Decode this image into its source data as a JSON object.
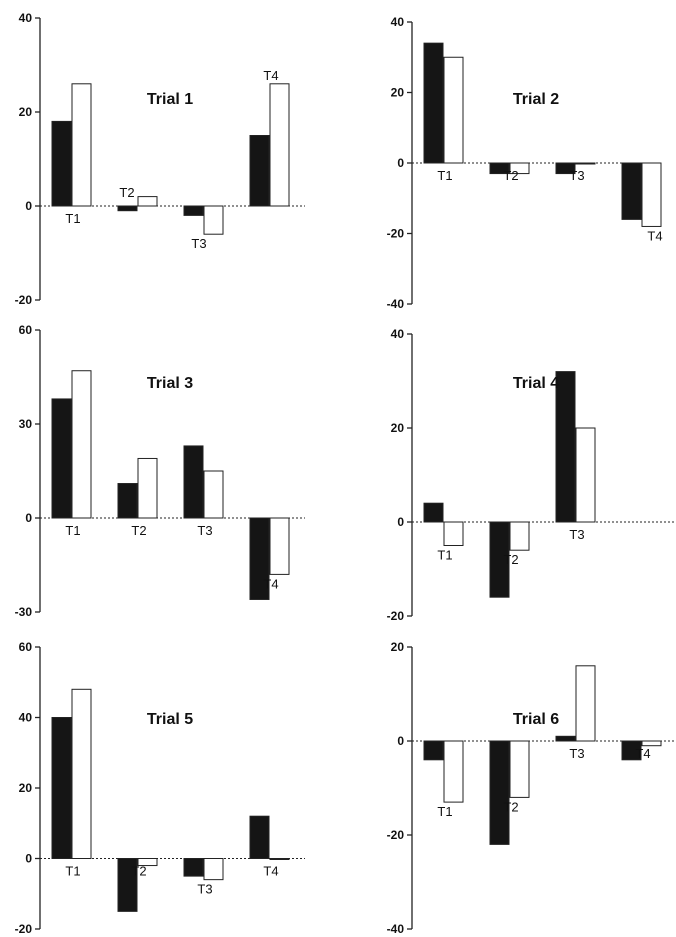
{
  "figure": {
    "colors": {
      "dark_bar": "#151515",
      "light_bar": "#ffffff",
      "axis": "#222222"
    }
  },
  "chart_data": [
    {
      "type": "bar",
      "title": "Trial 1",
      "categories": [
        "T1",
        "T2",
        "T3",
        "T4"
      ],
      "series": [
        {
          "values": [
            18,
            -1,
            -2,
            15
          ]
        },
        {
          "values": [
            26,
            2,
            -6,
            26
          ]
        }
      ],
      "ylim": [
        -20,
        40
      ],
      "yticks": [
        -20,
        0,
        20,
        40
      ]
    },
    {
      "type": "bar",
      "title": "Trial 2",
      "categories": [
        "T1",
        "T2",
        "T3",
        "T4"
      ],
      "series": [
        {
          "values": [
            34,
            -3,
            -3,
            -16
          ]
        },
        {
          "values": [
            30,
            -3,
            0,
            -18
          ]
        }
      ],
      "ylim": [
        -40,
        40
      ],
      "yticks": [
        -40,
        -20,
        0,
        20,
        40
      ]
    },
    {
      "type": "bar",
      "title": "Trial 3",
      "categories": [
        "T1",
        "T2",
        "T3",
        "T4"
      ],
      "series": [
        {
          "values": [
            38,
            11,
            23,
            -26
          ]
        },
        {
          "values": [
            47,
            19,
            15,
            -18
          ]
        }
      ],
      "ylim": [
        -30,
        60
      ],
      "yticks": [
        -30,
        0,
        30,
        60
      ]
    },
    {
      "type": "bar",
      "title": "Trial 4",
      "categories": [
        "T1",
        "T2",
        "T3"
      ],
      "series": [
        {
          "values": [
            4,
            -16,
            32
          ]
        },
        {
          "values": [
            -5,
            -6,
            20
          ]
        }
      ],
      "ylim": [
        -20,
        40
      ],
      "yticks": [
        -20,
        0,
        20,
        40
      ]
    },
    {
      "type": "bar",
      "title": "Trial 5",
      "categories": [
        "T1",
        "T2",
        "T3",
        "T4"
      ],
      "series": [
        {
          "values": [
            40,
            -15,
            -5,
            12
          ]
        },
        {
          "values": [
            48,
            -2,
            -6,
            0
          ]
        }
      ],
      "ylim": [
        -20,
        60
      ],
      "yticks": [
        -20,
        0,
        20,
        40,
        60
      ]
    },
    {
      "type": "bar",
      "title": "Trial 6",
      "categories": [
        "T1",
        "T2",
        "T3",
        "T4"
      ],
      "series": [
        {
          "values": [
            -4,
            -22,
            1,
            -4
          ]
        },
        {
          "values": [
            -13,
            -12,
            16,
            -1
          ]
        }
      ],
      "ylim": [
        -40,
        20
      ],
      "yticks": [
        -40,
        -20,
        0,
        20
      ]
    }
  ]
}
